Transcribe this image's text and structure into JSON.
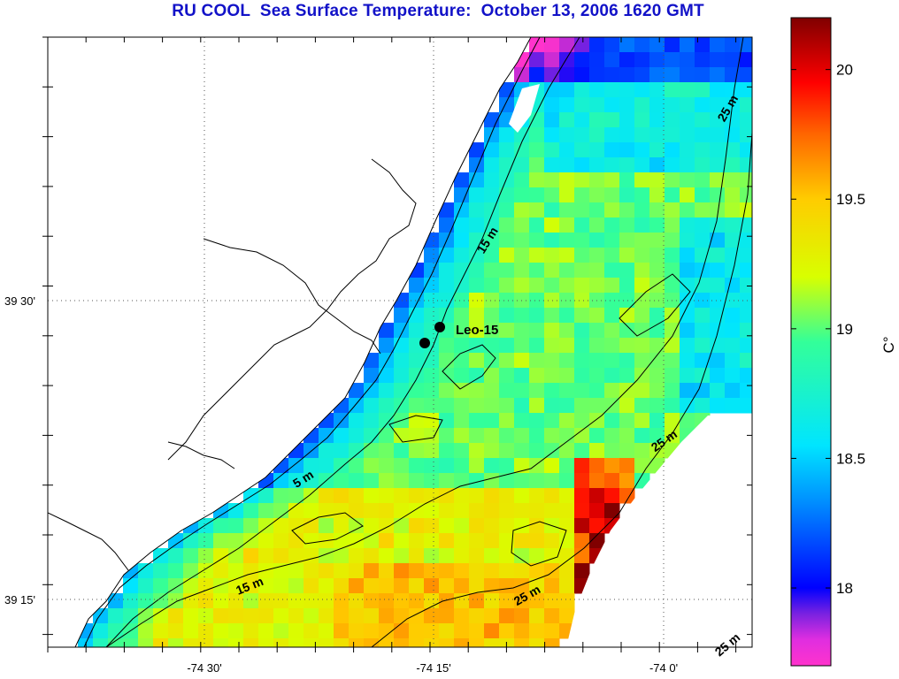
{
  "title": "RU COOL  Sea Surface Temperature:  October 13, 2006 1620 GMT",
  "map": {
    "lon_labels": [
      "-74 30'",
      "-74 15'",
      "-74 0'"
    ],
    "lat_labels": [
      "39 30'",
      "39 15'"
    ],
    "station": {
      "name": "Leo-15"
    },
    "contour_labels": [
      "5 m",
      "15 m",
      "15 m",
      "25 m",
      "25 m",
      "25 m",
      "25 m"
    ],
    "land_color": "#ffffff",
    "coastline_color": "#000000",
    "grid": "dotted"
  },
  "colorbar": {
    "ticks": [
      "18",
      "18.5",
      "19",
      "19.5",
      "20"
    ],
    "unit_label": "C°",
    "range": [
      17.7,
      20.2
    ],
    "colors": [
      "#ff33cc",
      "#7a22e0",
      "#0000ff",
      "#0096ff",
      "#00e5ff",
      "#33ff99",
      "#d8ff00",
      "#ffcc00",
      "#ff6600",
      "#ff0000",
      "#800000"
    ]
  }
}
